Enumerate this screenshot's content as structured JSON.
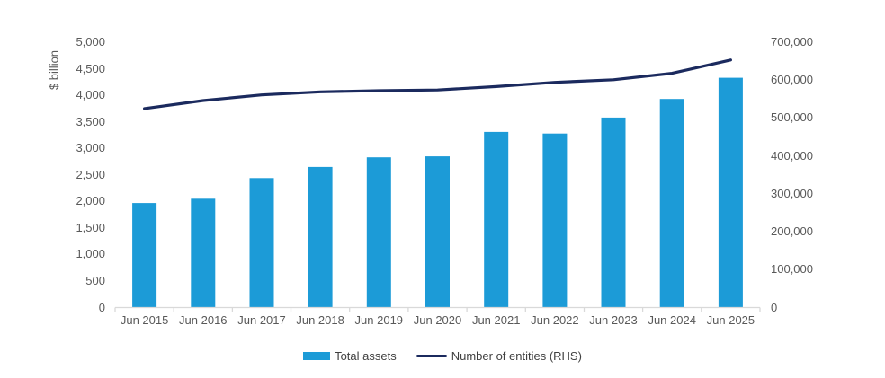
{
  "chart_data": {
    "type": "combo",
    "title": "",
    "categories": [
      "Jun 2015",
      "Jun 2016",
      "Jun 2017",
      "Jun 2018",
      "Jun 2019",
      "Jun 2020",
      "Jun 2021",
      "Jun 2022",
      "Jun 2023",
      "Jun 2024",
      "Jun 2025"
    ],
    "series": [
      {
        "name": "Total assets",
        "type": "bar",
        "axis": "left",
        "color": "#1C9BD7",
        "values": [
          1970,
          2050,
          2440,
          2650,
          2830,
          2850,
          3310,
          3280,
          3580,
          3930,
          4330
        ]
      },
      {
        "name": "Number of entities (RHS)",
        "type": "line",
        "axis": "right",
        "color": "#1B2A5E",
        "values": [
          525000,
          546000,
          561000,
          569000,
          572000,
          574000,
          583000,
          594000,
          601000,
          618000,
          653000
        ]
      }
    ],
    "left_axis": {
      "label": "$ billion",
      "min": 0,
      "max": 5000,
      "step": 500,
      "tick_labels": [
        "5,000",
        "4,500",
        "4,000",
        "3,500",
        "3,000",
        "2,500",
        "2,000",
        "1,500",
        "1,000",
        "500",
        "0"
      ]
    },
    "right_axis": {
      "label": "",
      "min": 0,
      "max": 700000,
      "step": 100000,
      "tick_labels": [
        "700,000",
        "600,000",
        "500,000",
        "400,000",
        "300,000",
        "200,000",
        "100,000",
        "0"
      ]
    },
    "grid": false,
    "legend_position": "bottom"
  },
  "legend": {
    "items": [
      {
        "label": "Total assets",
        "marker": "swatch",
        "color": "#1C9BD7"
      },
      {
        "label": "Number of entities (RHS)",
        "marker": "line",
        "color": "#1B2A5E"
      }
    ]
  },
  "colors": {
    "bar": "#1C9BD7",
    "line": "#1B2A5E",
    "axis_line": "#D9D9D9",
    "tick_text": "#595959",
    "legend_text": "#404040",
    "background": "#ffffff"
  }
}
